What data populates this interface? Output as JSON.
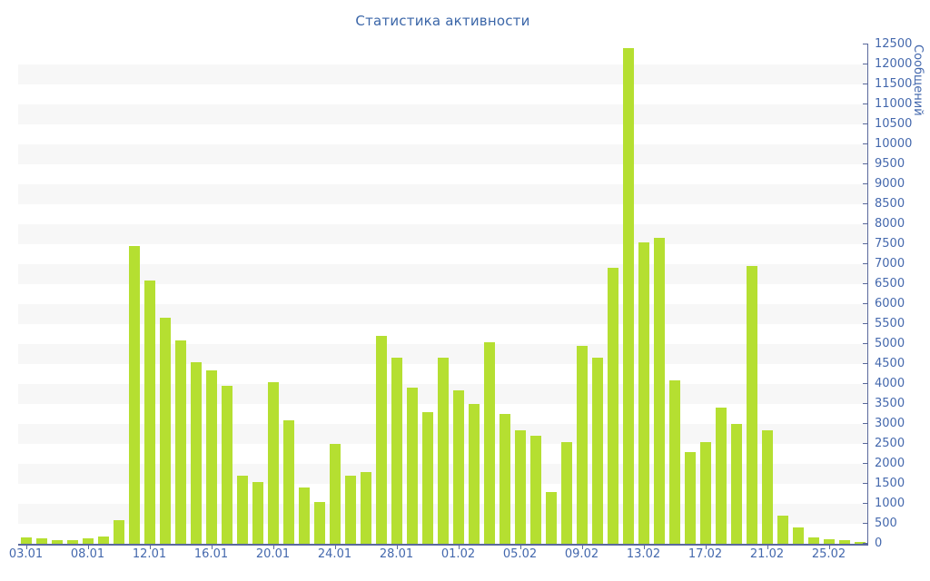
{
  "title": "Статистика активности",
  "y_axis": {
    "label": "Сообщений",
    "min": 0,
    "max": 12500,
    "step": 500
  },
  "colors": {
    "bar": "#b5df31",
    "band": "#f7f7f7",
    "axis": "#5a699c",
    "tick_label": "#4468ad",
    "title": "#3b66a8"
  },
  "chart_data": {
    "type": "bar",
    "title": "Статистика активности",
    "ylabel": "Сообщений",
    "ylim": [
      0,
      12500
    ],
    "y_step": 500,
    "grid": "horizontal-bands-every-1000-starting-500",
    "legend": "none",
    "values": [
      170,
      130,
      90,
      80,
      140,
      180,
      580,
      7450,
      6600,
      5650,
      5100,
      4550,
      4350,
      3950,
      1700,
      1550,
      4050,
      3100,
      1400,
      1050,
      2500,
      1700,
      1800,
      5200,
      4650,
      3900,
      3300,
      4650,
      3850,
      3500,
      5050,
      3250,
      2850,
      2700,
      1300,
      2550,
      4950,
      4650,
      6900,
      12400,
      7550,
      7650,
      4100,
      2300,
      2550,
      3400,
      3000,
      6950,
      2850,
      700,
      420,
      160,
      120,
      80,
      50
    ],
    "x_ticks": [
      {
        "index": 0,
        "label": "03.01"
      },
      {
        "index": 4,
        "label": "08.01"
      },
      {
        "index": 8,
        "label": "12.01"
      },
      {
        "index": 12,
        "label": "16.01"
      },
      {
        "index": 16,
        "label": "20.01"
      },
      {
        "index": 20,
        "label": "24.01"
      },
      {
        "index": 24,
        "label": "28.01"
      },
      {
        "index": 28,
        "label": "01.02"
      },
      {
        "index": 32,
        "label": "05.02"
      },
      {
        "index": 36,
        "label": "09.02"
      },
      {
        "index": 40,
        "label": "13.02"
      },
      {
        "index": 44,
        "label": "17.02"
      },
      {
        "index": 48,
        "label": "21.02"
      },
      {
        "index": 52,
        "label": "25.02"
      }
    ]
  }
}
